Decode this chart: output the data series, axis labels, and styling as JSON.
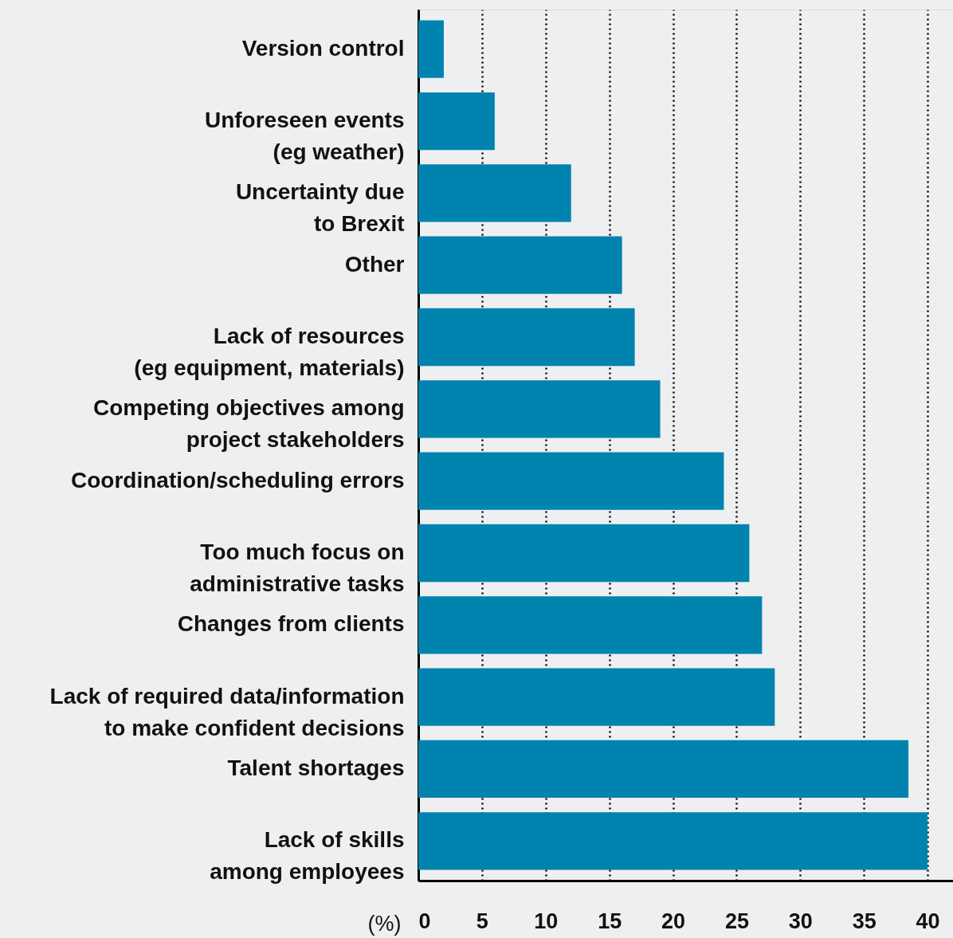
{
  "chart_data": {
    "type": "bar",
    "orientation": "horizontal",
    "xlabel": "(%)",
    "categories": [
      "Version control",
      "Unforeseen events\n(eg weather)",
      "Uncertainty due\nto Brexit",
      "Other",
      "Lack of resources\n(eg equipment, materials)",
      "Competing objectives among\nproject stakeholders",
      "Coordination/scheduling errors",
      "Too much focus on\nadministrative tasks",
      "Changes from clients",
      "Lack of required data/information\nto make confident decisions",
      "Talent shortages",
      "Lack of skills\namong employees"
    ],
    "values": [
      2,
      6,
      12,
      16,
      17,
      19,
      24,
      26,
      27,
      28,
      38.5,
      40
    ],
    "color": "#0083ae",
    "xlim": [
      0,
      42
    ],
    "xticks": [
      0,
      5,
      10,
      15,
      20,
      25,
      30,
      35,
      40
    ],
    "grid": "x"
  }
}
